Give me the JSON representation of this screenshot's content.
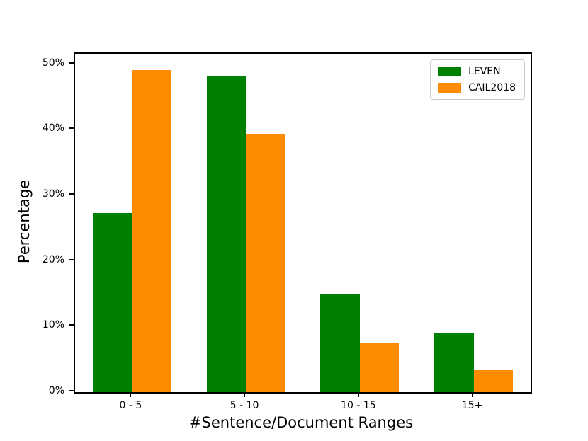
{
  "chart_data": {
    "type": "bar",
    "title": "",
    "xlabel": "#Sentence/Document Ranges",
    "ylabel": "Percentage",
    "categories": [
      "0 - 5",
      "5 - 10",
      "10 - 15",
      "15+"
    ],
    "series": [
      {
        "name": "LEVEN",
        "color": "#008000",
        "values": [
          27.3,
          48.2,
          15.0,
          9.0
        ]
      },
      {
        "name": "CAIL2018",
        "color": "#FF8C00",
        "values": [
          49.1,
          39.4,
          7.5,
          3.5
        ]
      }
    ],
    "ylim": [
      0,
      51.6
    ],
    "yticks": [
      0,
      10,
      20,
      30,
      40,
      50
    ],
    "ytick_suffix": "%",
    "legend_position": "upper right",
    "grid": false,
    "bar_width_fraction": 0.346
  }
}
